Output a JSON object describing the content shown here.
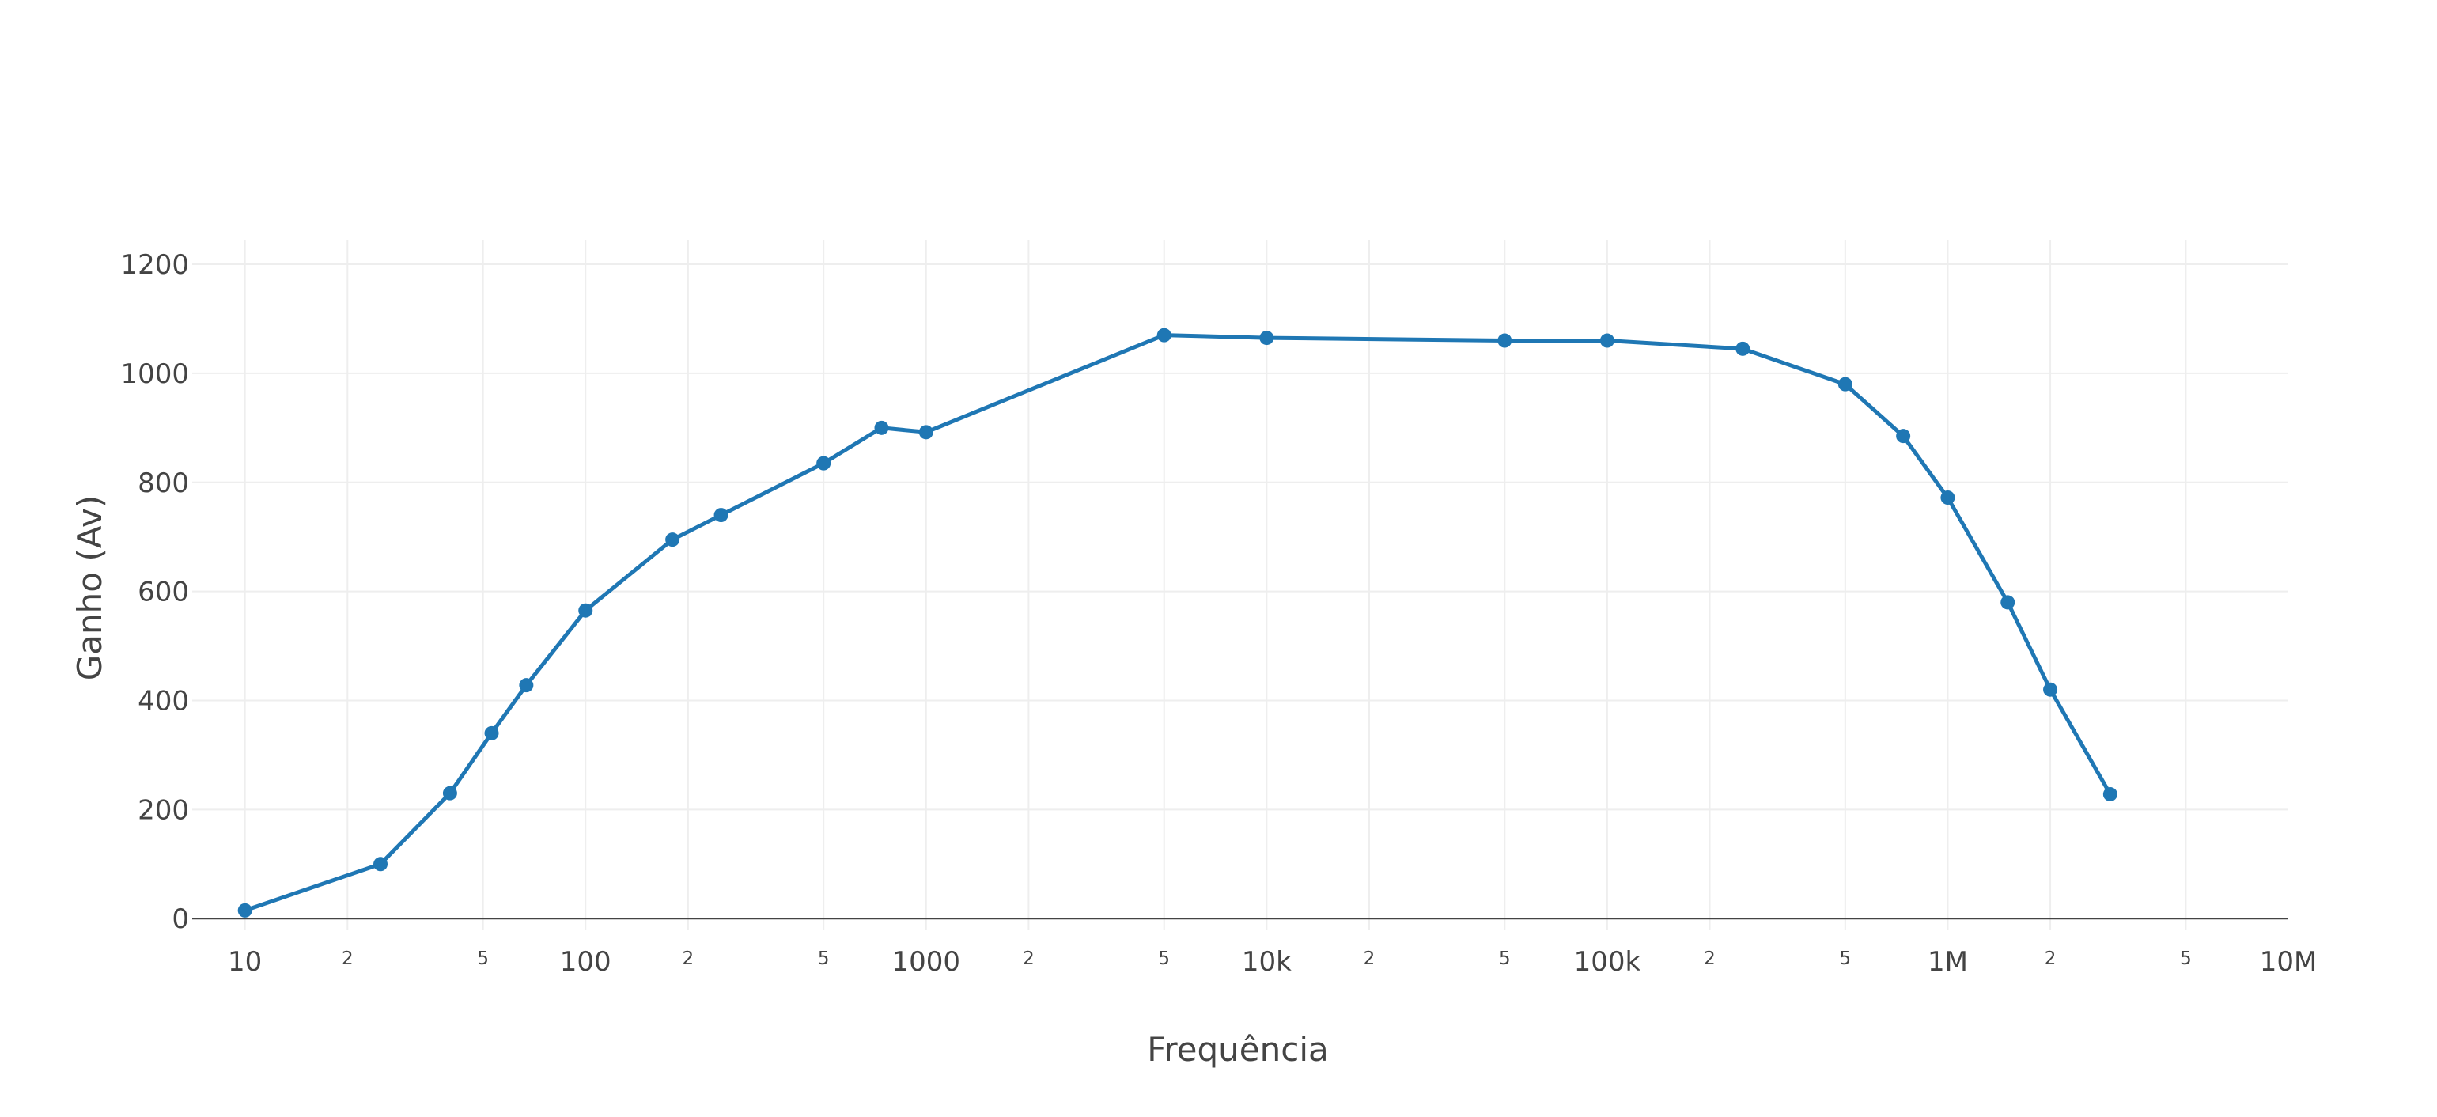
{
  "chart_data": {
    "type": "line",
    "xlabel": "Frequência",
    "ylabel": "Ganho (Av)",
    "x_scale": "log",
    "xlim": [
      7,
      10000000
    ],
    "ylim": [
      -20,
      1245
    ],
    "grid": true,
    "legend": "none",
    "colors": {
      "series": "#1f77b4",
      "grid": "#eeeeee",
      "zero_line": "#444444",
      "text": "#444444"
    },
    "y_ticks": [
      {
        "value": 0,
        "label": "0"
      },
      {
        "value": 200,
        "label": "200"
      },
      {
        "value": 400,
        "label": "400"
      },
      {
        "value": 600,
        "label": "600"
      },
      {
        "value": 800,
        "label": "800"
      },
      {
        "value": 1000,
        "label": "1000"
      },
      {
        "value": 1200,
        "label": "1200"
      }
    ],
    "x_major_ticks": [
      {
        "value": 10,
        "label": "10"
      },
      {
        "value": 100,
        "label": "100"
      },
      {
        "value": 1000,
        "label": "1000"
      },
      {
        "value": 10000,
        "label": "10k"
      },
      {
        "value": 100000,
        "label": "100k"
      },
      {
        "value": 1000000,
        "label": "1M"
      },
      {
        "value": 10000000,
        "label": "10M"
      }
    ],
    "x_minor_ticks": [
      {
        "value": 20,
        "label": "2"
      },
      {
        "value": 50,
        "label": "5"
      },
      {
        "value": 200,
        "label": "2"
      },
      {
        "value": 500,
        "label": "5"
      },
      {
        "value": 2000,
        "label": "2"
      },
      {
        "value": 5000,
        "label": "5"
      },
      {
        "value": 20000,
        "label": "2"
      },
      {
        "value": 50000,
        "label": "5"
      },
      {
        "value": 200000,
        "label": "2"
      },
      {
        "value": 500000,
        "label": "5"
      },
      {
        "value": 2000000,
        "label": "2"
      },
      {
        "value": 5000000,
        "label": "5"
      }
    ],
    "series": [
      {
        "x": [
          10,
          25,
          40,
          53,
          67,
          100,
          180,
          250,
          500,
          740,
          1000,
          5000,
          10000,
          50000,
          100000,
          250000,
          500000,
          740000,
          1000000,
          1500000,
          2000000,
          3000000
        ],
        "y": [
          15,
          100,
          230,
          340,
          428,
          565,
          695,
          740,
          835,
          900,
          892,
          1070,
          1065,
          1060,
          1060,
          1045,
          980,
          885,
          772,
          580,
          420,
          228
        ]
      }
    ]
  }
}
